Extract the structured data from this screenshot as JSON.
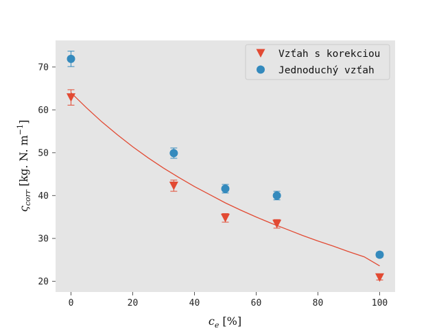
{
  "chart_data": {
    "type": "scatter",
    "xlabel": {
      "symbol": "c",
      "sub": "e",
      "unit": " [%]"
    },
    "ylabel": {
      "symbol": "ς",
      "sub": "corr",
      "unit_before_exp": " [kg. N. m",
      "exp": "−1",
      "unit_after_exp": "]"
    },
    "xlim": [
      -5,
      105
    ],
    "ylim": [
      17.5,
      76.2
    ],
    "xticks": [
      "0",
      "20",
      "40",
      "60",
      "80",
      "100"
    ],
    "yticks": [
      "20",
      "30",
      "40",
      "50",
      "60",
      "70"
    ],
    "grid": false,
    "legend_position": "top-right",
    "series": [
      {
        "name": "Vzťah s korekciou",
        "marker": "triangle-down",
        "color": "#E24A33",
        "x": [
          0,
          33.3,
          50,
          66.7,
          100
        ],
        "y": [
          62.9,
          42.3,
          34.8,
          33.4,
          20.9
        ],
        "err": [
          1.8,
          1.3,
          1.0,
          1.0,
          0.6
        ]
      },
      {
        "name": "Jednoduchý vzťah",
        "marker": "circle",
        "color": "#348ABD",
        "x": [
          0,
          33.3,
          50,
          66.7,
          100
        ],
        "y": [
          71.9,
          49.9,
          41.6,
          40.0,
          26.2
        ],
        "err": [
          1.8,
          1.2,
          1.0,
          1.0,
          0.6
        ]
      }
    ],
    "fit_curve": {
      "color": "#E24A33",
      "x": [
        0,
        5,
        10,
        15,
        20,
        25,
        30,
        35,
        40,
        45,
        50,
        55,
        60,
        65,
        70,
        75,
        80,
        85,
        90,
        95,
        100
      ],
      "y": [
        64.0,
        60.5,
        57.2,
        54.2,
        51.4,
        48.8,
        46.4,
        44.2,
        42.1,
        40.2,
        38.3,
        36.6,
        35.0,
        33.5,
        32.1,
        30.7,
        29.4,
        28.2,
        26.9,
        25.7,
        23.6
      ]
    }
  },
  "style": {
    "plot_bg": "#E5E5E5",
    "tick_color": "#555555"
  }
}
